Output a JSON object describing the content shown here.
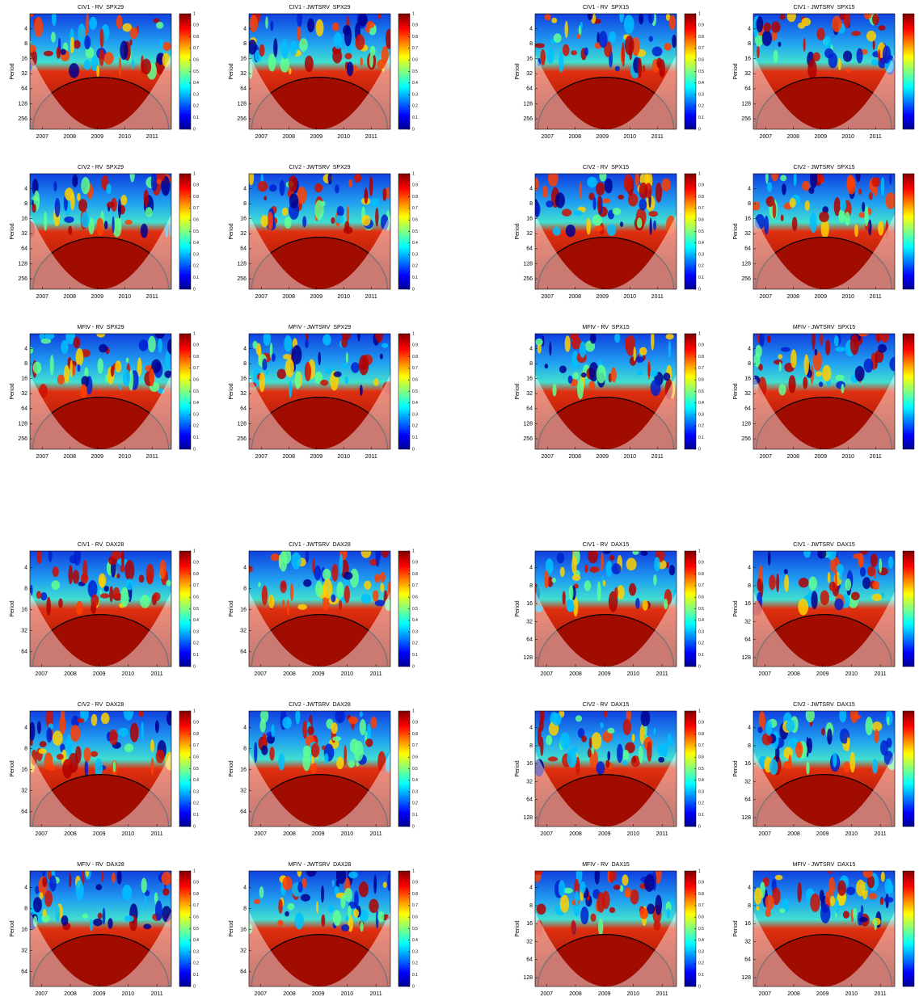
{
  "chart_data": [
    {
      "type": "heatmap",
      "title": "CIV1 - RV  SPX29",
      "ylabel": "Period",
      "log_y": true,
      "xlim": [
        2006.55,
        2011.7
      ],
      "xticks": [
        2007,
        2008,
        2009,
        2010,
        2011
      ],
      "ylim": [
        415,
        2
      ],
      "yticks": [
        4,
        8,
        16,
        32,
        64,
        128,
        256
      ],
      "clim": [
        0,
        1
      ],
      "cticks": [
        0,
        0.1,
        0.2,
        0.3,
        0.4,
        0.5,
        0.6,
        0.7,
        0.8,
        0.9,
        1
      ]
    },
    {
      "type": "heatmap",
      "title": "CIV1 - JWTSRV  SPX29",
      "ylabel": "Period",
      "log_y": true,
      "xlim": [
        2006.55,
        2011.7
      ],
      "xticks": [
        2007,
        2008,
        2009,
        2010,
        2011
      ],
      "ylim": [
        415,
        2
      ],
      "yticks": [
        4,
        8,
        16,
        32,
        64,
        128,
        256
      ],
      "clim": [
        0,
        1
      ],
      "cticks": [
        0,
        0.1,
        0.2,
        0.3,
        0.4,
        0.5,
        0.6,
        0.7,
        0.8,
        0.9,
        1
      ]
    },
    {
      "type": "heatmap",
      "title": "CIV1 - RV  SPX15",
      "ylabel": "Period",
      "log_y": true,
      "xlim": [
        2006.55,
        2011.7
      ],
      "xticks": [
        2007,
        2008,
        2009,
        2010,
        2011
      ],
      "ylim": [
        415,
        2
      ],
      "yticks": [
        4,
        8,
        16,
        32,
        64,
        128,
        256
      ],
      "clim": [
        0,
        1
      ],
      "cticks": [
        0,
        0.1,
        0.2,
        0.3,
        0.4,
        0.5,
        0.6,
        0.7,
        0.8,
        0.9,
        1
      ]
    },
    {
      "type": "heatmap",
      "title": "CIV1 - JWTSRV  SPX15",
      "ylabel": "Period",
      "log_y": true,
      "xlim": [
        2006.55,
        2011.7
      ],
      "xticks": [
        2007,
        2008,
        2009,
        2010,
        2011
      ],
      "ylim": [
        415,
        2
      ],
      "yticks": [
        4,
        8,
        16,
        32,
        64,
        128,
        256
      ],
      "clim": [
        0,
        1
      ]
    },
    {
      "type": "heatmap",
      "title": "CIV2 - RV  SPX29",
      "ylabel": "Period",
      "log_y": true,
      "xlim": [
        2006.55,
        2011.7
      ],
      "xticks": [
        2007,
        2008,
        2009,
        2010,
        2011
      ],
      "ylim": [
        415,
        2
      ],
      "yticks": [
        4,
        8,
        16,
        32,
        64,
        128,
        256
      ],
      "clim": [
        0,
        1
      ],
      "cticks": [
        0,
        0.1,
        0.2,
        0.3,
        0.4,
        0.5,
        0.6,
        0.7,
        0.8,
        0.9,
        1
      ]
    },
    {
      "type": "heatmap",
      "title": "CIV2 - JWTSRV  SPX29",
      "ylabel": "Period",
      "log_y": true,
      "xlim": [
        2006.55,
        2011.7
      ],
      "xticks": [
        2007,
        2008,
        2009,
        2010,
        2011
      ],
      "ylim": [
        415,
        2
      ],
      "yticks": [
        4,
        8,
        16,
        32,
        64,
        128,
        256
      ],
      "clim": [
        0,
        1
      ],
      "cticks": [
        0,
        0.1,
        0.2,
        0.3,
        0.4,
        0.5,
        0.6,
        0.7,
        0.8,
        0.9,
        1
      ]
    },
    {
      "type": "heatmap",
      "title": "CIV2 - RV  SPX15",
      "ylabel": "Period",
      "log_y": true,
      "xlim": [
        2006.55,
        2011.7
      ],
      "xticks": [
        2007,
        2008,
        2009,
        2010,
        2011
      ],
      "ylim": [
        415,
        2
      ],
      "yticks": [
        4,
        8,
        16,
        32,
        64,
        128,
        256
      ],
      "clim": [
        0,
        1
      ],
      "cticks": [
        0,
        0.1,
        0.2,
        0.3,
        0.4,
        0.5,
        0.6,
        0.7,
        0.8,
        0.9,
        1
      ]
    },
    {
      "type": "heatmap",
      "title": "CIV2 - JWTSRV  SPX15",
      "ylabel": "Period",
      "log_y": true,
      "xlim": [
        2006.55,
        2011.7
      ],
      "xticks": [
        2007,
        2008,
        2009,
        2010,
        2011
      ],
      "ylim": [
        415,
        2
      ],
      "yticks": [
        4,
        8,
        16,
        32,
        64,
        128,
        256
      ],
      "clim": [
        0,
        1
      ]
    },
    {
      "type": "heatmap",
      "title": "MFIV - RV  SPX29",
      "ylabel": "Period",
      "log_y": true,
      "xlim": [
        2006.55,
        2011.7
      ],
      "xticks": [
        2007,
        2008,
        2009,
        2010,
        2011
      ],
      "ylim": [
        415,
        2
      ],
      "yticks": [
        4,
        8,
        16,
        32,
        64,
        128,
        256
      ],
      "clim": [
        0,
        1
      ],
      "cticks": [
        0,
        0.1,
        0.2,
        0.3,
        0.4,
        0.5,
        0.6,
        0.7,
        0.8,
        0.9,
        1
      ]
    },
    {
      "type": "heatmap",
      "title": "MFIV - JWTSRV  SPX29",
      "ylabel": "Period",
      "log_y": true,
      "xlim": [
        2006.55,
        2011.7
      ],
      "xticks": [
        2007,
        2008,
        2009,
        2010,
        2011
      ],
      "ylim": [
        415,
        2
      ],
      "yticks": [
        4,
        8,
        16,
        32,
        64,
        128,
        256
      ],
      "clim": [
        0,
        1
      ],
      "cticks": [
        0,
        0.1,
        0.2,
        0.3,
        0.4,
        0.5,
        0.6,
        0.7,
        0.8,
        0.9,
        1
      ]
    },
    {
      "type": "heatmap",
      "title": "MFIV - RV  SPX15",
      "ylabel": "Period",
      "log_y": true,
      "xlim": [
        2006.55,
        2011.7
      ],
      "xticks": [
        2007,
        2008,
        2009,
        2010,
        2011
      ],
      "ylim": [
        415,
        2
      ],
      "yticks": [
        4,
        8,
        16,
        32,
        64,
        128,
        256
      ],
      "clim": [
        0,
        1
      ],
      "cticks": [
        0,
        0.1,
        0.2,
        0.3,
        0.4,
        0.5,
        0.6,
        0.7,
        0.8,
        0.9,
        1
      ]
    },
    {
      "type": "heatmap",
      "title": "MFIV - JWTSRV  SPX15",
      "ylabel": "Period",
      "log_y": true,
      "xlim": [
        2006.55,
        2011.7
      ],
      "xticks": [
        2007,
        2008,
        2009,
        2010,
        2011
      ],
      "ylim": [
        415,
        2
      ],
      "yticks": [
        4,
        8,
        16,
        32,
        64,
        128,
        256
      ],
      "clim": [
        0,
        1
      ]
    },
    {
      "type": "heatmap",
      "title": "CIV1 - RV  DAX28",
      "ylabel": "Period",
      "log_y": true,
      "xlim": [
        2006.6,
        2011.5
      ],
      "xticks": [
        2007,
        2008,
        2009,
        2010,
        2011
      ],
      "ylim": [
        104,
        2.3
      ],
      "yticks": [
        4,
        8,
        16,
        32,
        64
      ],
      "clim": [
        0,
        1
      ],
      "cticks": [
        0,
        0.1,
        0.2,
        0.3,
        0.4,
        0.5,
        0.6,
        0.7,
        0.8,
        0.9,
        1
      ]
    },
    {
      "type": "heatmap",
      "title": "CIV1 - JWTSRV  DAX28",
      "ylabel": "Period",
      "log_y": true,
      "xlim": [
        2006.6,
        2011.5
      ],
      "xticks": [
        2007,
        2008,
        2009,
        2010,
        2011
      ],
      "ylim": [
        104,
        2.3
      ],
      "yticks": [
        4,
        8,
        16,
        32,
        64
      ],
      "clim": [
        0,
        1
      ],
      "cticks": [
        0,
        0.1,
        0.2,
        0.3,
        0.4,
        0.5,
        0.6,
        0.7,
        0.8,
        0.9,
        1
      ]
    },
    {
      "type": "heatmap",
      "title": "CIV1 - RV  DAX15",
      "ylabel": "Period",
      "log_y": true,
      "xlim": [
        2006.6,
        2011.5
      ],
      "xticks": [
        2007,
        2008,
        2009,
        2010,
        2011
      ],
      "ylim": [
        180,
        2.1
      ],
      "yticks": [
        4,
        8,
        16,
        32,
        64,
        128
      ],
      "clim": [
        0,
        1
      ],
      "cticks": [
        0,
        0.1,
        0.2,
        0.3,
        0.4,
        0.5,
        0.6,
        0.7,
        0.8,
        0.9,
        1
      ]
    },
    {
      "type": "heatmap",
      "title": "CIV1 - JWTSRV  DAX15",
      "ylabel": "Period",
      "log_y": true,
      "xlim": [
        2006.6,
        2011.5
      ],
      "xticks": [
        2007,
        2008,
        2009,
        2010,
        2011
      ],
      "ylim": [
        180,
        2.1
      ],
      "yticks": [
        4,
        8,
        16,
        32,
        64,
        128
      ],
      "clim": [
        0,
        1
      ]
    },
    {
      "type": "heatmap",
      "title": "CIV2 - RV  DAX28",
      "ylabel": "Period",
      "log_y": true,
      "xlim": [
        2006.6,
        2011.5
      ],
      "xticks": [
        2007,
        2008,
        2009,
        2010,
        2011
      ],
      "ylim": [
        104,
        2.3
      ],
      "yticks": [
        4,
        8,
        16,
        32,
        64
      ],
      "clim": [
        0,
        1
      ],
      "cticks": [
        0,
        0.1,
        0.2,
        0.3,
        0.4,
        0.5,
        0.6,
        0.7,
        0.8,
        0.9,
        1
      ]
    },
    {
      "type": "heatmap",
      "title": "CIV2 - JWTSRV  DAX28",
      "ylabel": "Period",
      "log_y": true,
      "xlim": [
        2006.6,
        2011.5
      ],
      "xticks": [
        2007,
        2008,
        2009,
        2010,
        2011
      ],
      "ylim": [
        104,
        2.3
      ],
      "yticks": [
        4,
        8,
        16,
        32,
        64
      ],
      "clim": [
        0,
        1
      ],
      "cticks": [
        0,
        0.1,
        0.2,
        0.3,
        0.4,
        0.5,
        0.6,
        0.7,
        0.8,
        0.9,
        1
      ]
    },
    {
      "type": "heatmap",
      "title": "CIV2 - RV  DAX15",
      "ylabel": "Period",
      "log_y": true,
      "xlim": [
        2006.6,
        2011.5
      ],
      "xticks": [
        2007,
        2008,
        2009,
        2010,
        2011
      ],
      "ylim": [
        180,
        2.1
      ],
      "yticks": [
        4,
        8,
        16,
        32,
        64,
        128
      ],
      "clim": [
        0,
        1
      ],
      "cticks": [
        0,
        0.1,
        0.2,
        0.3,
        0.4,
        0.5,
        0.6,
        0.7,
        0.8,
        0.9,
        1
      ]
    },
    {
      "type": "heatmap",
      "title": "CIV2 - JWTSRV  DAX15",
      "ylabel": "Period",
      "log_y": true,
      "xlim": [
        2006.6,
        2011.5
      ],
      "xticks": [
        2007,
        2008,
        2009,
        2010,
        2011
      ],
      "ylim": [
        180,
        2.1
      ],
      "yticks": [
        4,
        8,
        16,
        32,
        64,
        128
      ],
      "clim": [
        0,
        1
      ]
    },
    {
      "type": "heatmap",
      "title": "MFIV - RV  DAX28",
      "ylabel": "Period",
      "log_y": true,
      "xlim": [
        2006.6,
        2011.5
      ],
      "xticks": [
        2007,
        2008,
        2009,
        2010,
        2011
      ],
      "ylim": [
        104,
        2.3
      ],
      "yticks": [
        4,
        8,
        16,
        32,
        64
      ],
      "clim": [
        0,
        1
      ],
      "cticks": [
        0,
        0.1,
        0.2,
        0.3,
        0.4,
        0.5,
        0.6,
        0.7,
        0.8,
        0.9,
        1
      ]
    },
    {
      "type": "heatmap",
      "title": "MFIV - JWTSRV  DAX28",
      "ylabel": "Period",
      "log_y": true,
      "xlim": [
        2006.6,
        2011.5
      ],
      "xticks": [
        2007,
        2008,
        2009,
        2010,
        2011
      ],
      "ylim": [
        104,
        2.3
      ],
      "yticks": [
        4,
        8,
        16,
        32,
        64
      ],
      "clim": [
        0,
        1
      ],
      "cticks": [
        0,
        0.1,
        0.2,
        0.3,
        0.4,
        0.5,
        0.6,
        0.7,
        0.8,
        0.9,
        1
      ]
    },
    {
      "type": "heatmap",
      "title": "MFIV - RV  DAX15",
      "ylabel": "Period",
      "log_y": true,
      "xlim": [
        2006.6,
        2011.5
      ],
      "xticks": [
        2007,
        2008,
        2009,
        2010,
        2011
      ],
      "ylim": [
        180,
        2.1
      ],
      "yticks": [
        4,
        8,
        16,
        32,
        64,
        128
      ],
      "clim": [
        0,
        1
      ],
      "cticks": [
        0,
        0.1,
        0.2,
        0.3,
        0.4,
        0.5,
        0.6,
        0.7,
        0.8,
        0.9,
        1
      ]
    },
    {
      "type": "heatmap",
      "title": "MFIV - JWTSRV  DAX15",
      "ylabel": "Period",
      "log_y": true,
      "xlim": [
        2006.6,
        2011.5
      ],
      "xticks": [
        2007,
        2008,
        2009,
        2010,
        2011
      ],
      "ylim": [
        180,
        2.1
      ],
      "yticks": [
        4,
        8,
        16,
        32,
        64,
        128
      ],
      "clim": [
        0,
        1
      ]
    }
  ]
}
